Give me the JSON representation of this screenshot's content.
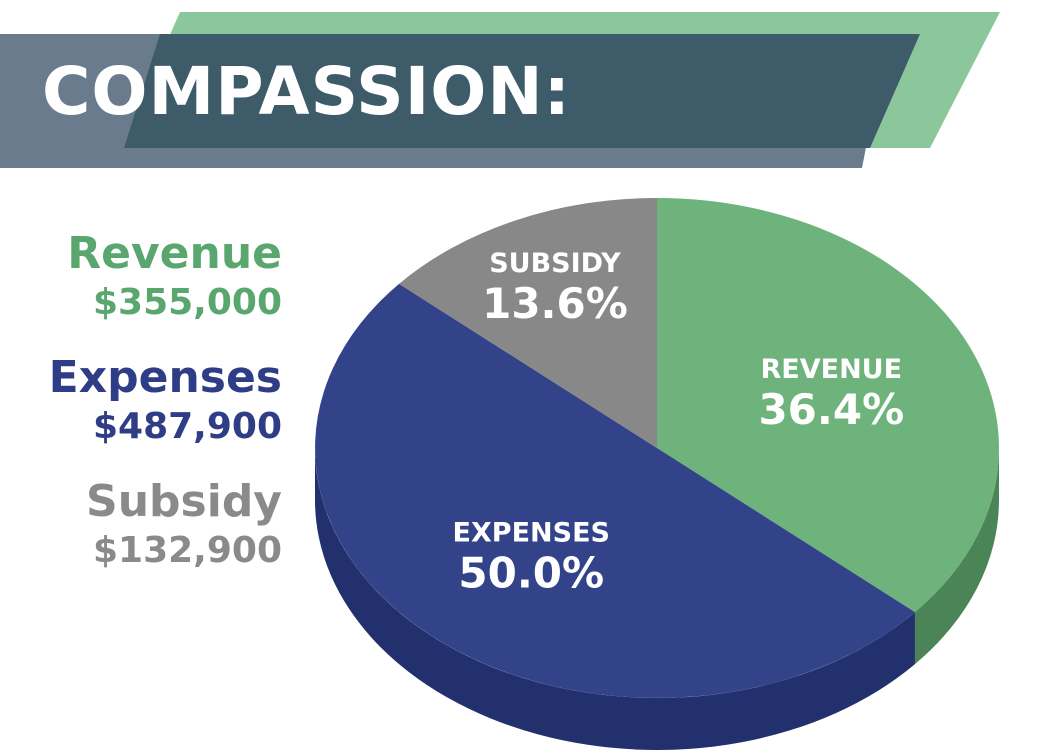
{
  "header": {
    "title": "COMPASSION:",
    "colors": {
      "bar": "#3e5b6a",
      "shadow": "#6a7b8e",
      "accent": "#8cc79b"
    }
  },
  "legend": [
    {
      "name": "Revenue",
      "amount": "$355,000",
      "color": "#5aa66f"
    },
    {
      "name": "Expenses",
      "amount": "$487,900",
      "color": "#2e3d85"
    },
    {
      "name": "Subsidy",
      "amount": "$132,900",
      "color": "#8a8a8a"
    }
  ],
  "chart_data": {
    "type": "pie",
    "start_angle_deg": 0,
    "direction": "clockwise",
    "slices": [
      {
        "label": "REVENUE",
        "value": 36.4,
        "display": "36.4%",
        "color": "#6eb37c",
        "side_color": "#4b8557"
      },
      {
        "label": "EXPENSES",
        "value": 50.0,
        "display": "50.0%",
        "color": "#32438a",
        "side_color": "#22306e"
      },
      {
        "label": "SUBSIDY",
        "value": 13.6,
        "display": "13.6%",
        "color": "#888888",
        "side_color": "#666666"
      }
    ]
  }
}
